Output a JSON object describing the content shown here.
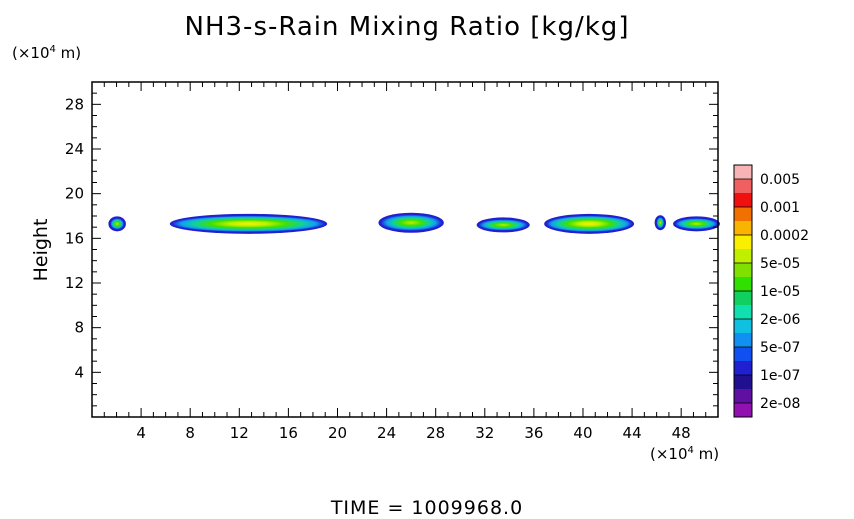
{
  "chart_data": {
    "type": "heatmap",
    "title": "NH3-s-Rain Mixing Ratio [kg/kg]",
    "ylabel": "Height",
    "y_unit": "(×10",
    "x_unit": "(×10",
    "unit_exponent": "4",
    "unit_suffix": " m)",
    "xlim": [
      0,
      51
    ],
    "ylim": [
      0,
      30
    ],
    "x_ticks": [
      4,
      8,
      12,
      16,
      20,
      24,
      28,
      32,
      36,
      40,
      44,
      48
    ],
    "y_ticks": [
      4,
      8,
      12,
      16,
      20,
      24,
      28
    ],
    "colorbar": {
      "labels": [
        "0.005",
        "0.001",
        "0.0002",
        "5e-05",
        "1e-05",
        "2e-06",
        "5e-07",
        "1e-07",
        "2e-08"
      ],
      "colors_top_to_bottom": [
        "#f8b4b4",
        "#f06060",
        "#f01010",
        "#f07000",
        "#f8b400",
        "#f8f000",
        "#c0f000",
        "#80e000",
        "#30e000",
        "#10d060",
        "#10e0b0",
        "#10c0e0",
        "#1090f0",
        "#1050f0",
        "#2020d0",
        "#201090",
        "#6010a0",
        "#9010b0"
      ]
    },
    "regions": [
      {
        "x0": 1.5,
        "x1": 2.6,
        "y": 17.3,
        "peak": "2e-06"
      },
      {
        "x0": 6.5,
        "x1": 19.0,
        "y": 17.3,
        "peak": "5e-05"
      },
      {
        "x0": 23.5,
        "x1": 28.5,
        "y": 17.4,
        "peak": "1e-05"
      },
      {
        "x0": 31.5,
        "x1": 35.5,
        "y": 17.2,
        "peak": "1e-05"
      },
      {
        "x0": 37.0,
        "x1": 44.0,
        "y": 17.3,
        "peak": "5e-05"
      },
      {
        "x0": 46.0,
        "x1": 46.6,
        "y": 17.4,
        "peak": "2e-06"
      },
      {
        "x0": 47.5,
        "x1": 51.0,
        "y": 17.3,
        "peak": "2e-06"
      }
    ]
  },
  "time_label": "TIME  =  1009968.0"
}
